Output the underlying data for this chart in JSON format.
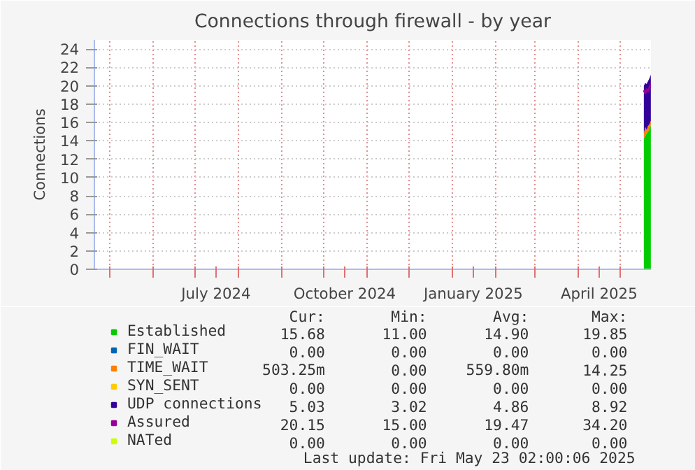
{
  "chart_data": {
    "type": "area",
    "stacked": true,
    "title": "Connections through firewall - by year",
    "ylabel": "Connections",
    "x": [
      "2025-05-18",
      "2025-05-19",
      "2025-05-20",
      "2025-05-21",
      "2025-05-22",
      "2025-05-23"
    ],
    "series": [
      {
        "name": "Established",
        "color": "#00cc00",
        "values": [
          14.3,
          14.5,
          14.8,
          15.0,
          15.3,
          15.7
        ]
      },
      {
        "name": "FIN_WAIT",
        "color": "#0066b3",
        "values": [
          null,
          null,
          null,
          null,
          null,
          null
        ]
      },
      {
        "name": "TIME_WAIT",
        "color": "#ff8000",
        "values": [
          0.5,
          1.0,
          0.4,
          0.6,
          0.5,
          0.5
        ]
      },
      {
        "name": "SYN_SENT",
        "color": "#ffcc00",
        "values": [
          null,
          null,
          null,
          null,
          null,
          null
        ]
      },
      {
        "name": "UDP connections",
        "color": "#330099",
        "values": [
          5.2,
          4.8,
          5.0,
          4.9,
          5.0,
          5.0
        ]
      },
      {
        "name": "Assured",
        "color": "#990099",
        "type": "line",
        "values": [
          19.5,
          19.2,
          19.6,
          19.4,
          19.8,
          20.2
        ]
      },
      {
        "name": "NATed",
        "color": "#ccff00",
        "type": "line",
        "values": [
          null,
          null,
          null,
          null,
          null,
          null
        ]
      }
    ],
    "xlim": [
      "2024-04-20",
      "2025-05-23T02:00"
    ],
    "xticks": [
      {
        "value": "2024-05-01",
        "label": null
      },
      {
        "value": "2024-06-01",
        "label": null
      },
      {
        "value": "2024-07-01",
        "label": null
      },
      {
        "value": "2024-07-16",
        "label": "July 2024"
      },
      {
        "value": "2024-08-01",
        "label": null
      },
      {
        "value": "2024-09-01",
        "label": null
      },
      {
        "value": "2024-10-01",
        "label": null
      },
      {
        "value": "2024-10-16",
        "label": "October 2024"
      },
      {
        "value": "2024-11-01",
        "label": null
      },
      {
        "value": "2024-12-01",
        "label": null
      },
      {
        "value": "2025-01-01",
        "label": null
      },
      {
        "value": "2025-01-16",
        "label": "January 2025"
      },
      {
        "value": "2025-02-01",
        "label": null
      },
      {
        "value": "2025-03-01",
        "label": null
      },
      {
        "value": "2025-04-01",
        "label": null
      },
      {
        "value": "2025-04-16",
        "label": "April 2025"
      },
      {
        "value": "2025-05-01",
        "label": null
      }
    ],
    "ylim": [
      0,
      25
    ],
    "yticks": [
      0,
      2,
      4,
      6,
      8,
      10,
      12,
      14,
      16,
      18,
      20,
      22,
      24
    ],
    "grid": true,
    "legend": "bottom",
    "marker": "none",
    "annotations": [
      "Cur:",
      "Min:",
      "Avg:",
      "Max:",
      "15.68",
      "11.00",
      "14.90",
      "19.85",
      "0.00",
      "0.00",
      "0.00",
      "0.00",
      "503.25m",
      "0.00",
      "559.80m",
      "14.25",
      "0.00",
      "0.00",
      "0.00",
      "0.00",
      "5.03",
      "3.02",
      "4.86",
      "8.92",
      "20.15",
      "15.00",
      "19.47",
      "34.20",
      "0.00",
      "0.00",
      "0.00",
      "0.00",
      "Last update: Fri May 23 02:00:06 2025"
    ]
  }
}
